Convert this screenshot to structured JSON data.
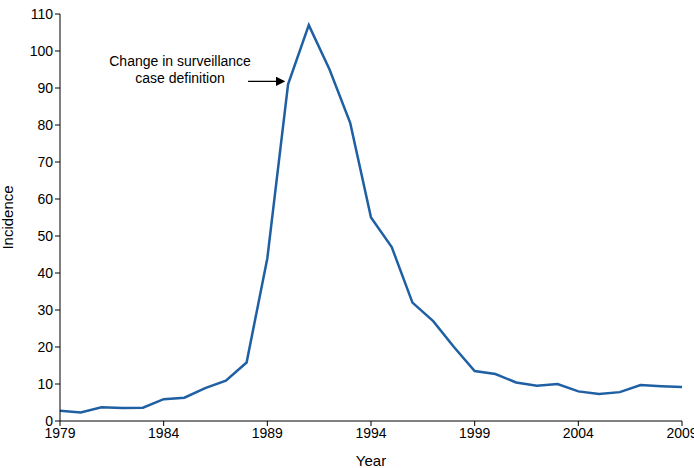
{
  "chart_data": {
    "type": "line",
    "x_label": "Year",
    "y_label": "Incidence",
    "x": [
      1979,
      1980,
      1981,
      1982,
      1983,
      1984,
      1985,
      1986,
      1987,
      1988,
      1989,
      1990,
      1991,
      1992,
      1993,
      1994,
      1995,
      1996,
      1997,
      1998,
      1999,
      2000,
      2001,
      2002,
      2003,
      2004,
      2005,
      2006,
      2007,
      2008,
      2009
    ],
    "values": [
      2.8,
      2.3,
      3.7,
      3.5,
      3.6,
      5.9,
      6.3,
      8.9,
      10.9,
      15.8,
      44,
      91,
      107,
      95,
      80.5,
      55,
      47,
      32,
      27,
      20,
      13.5,
      12.7,
      10.4,
      9.5,
      10,
      8,
      7.3,
      7.8,
      9.7,
      9.4,
      9.2
    ],
    "color": "#1f5fa3",
    "xlim": [
      1979,
      2009
    ],
    "xticks": [
      1979,
      1984,
      1989,
      1994,
      1999,
      2004,
      2009
    ],
    "ylim": [
      0,
      110
    ],
    "yticks": [
      0,
      10,
      20,
      30,
      40,
      50,
      60,
      70,
      80,
      90,
      100,
      110
    ],
    "grid": false,
    "annotations": [
      {
        "text": "Change in surveillance\ncase definition",
        "x": 1990,
        "y": 91
      }
    ]
  }
}
